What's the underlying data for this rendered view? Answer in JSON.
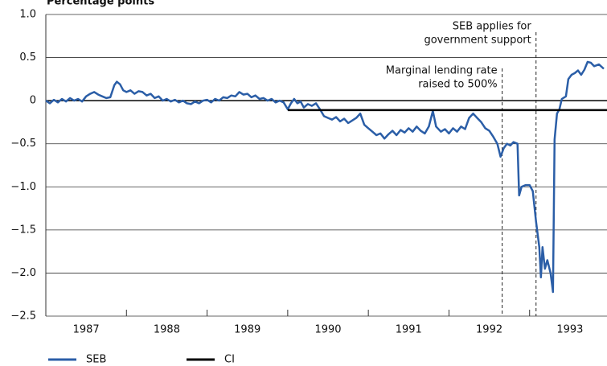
{
  "chart_data": {
    "type": "line",
    "y_label": "Percentage points",
    "xlim": [
      1987,
      1993.96
    ],
    "xticks": [
      {
        "value": 1987.5,
        "label": "1987"
      },
      {
        "value": 1988.5,
        "label": "1988"
      },
      {
        "value": 1989.5,
        "label": "1989"
      },
      {
        "value": 1990.5,
        "label": "1990"
      },
      {
        "value": 1991.5,
        "label": "1991"
      },
      {
        "value": 1992.5,
        "label": "1992"
      },
      {
        "value": 1993.5,
        "label": "1993"
      }
    ],
    "xtick_marks": [
      1988,
      1989,
      1990,
      1991,
      1992,
      1993
    ],
    "ylim": [
      -2.5,
      1.0
    ],
    "yticks": [
      {
        "value": 1.0,
        "label": "1.0"
      },
      {
        "value": 0.5,
        "label": "0.5"
      },
      0,
      {
        "value": -0.5,
        "label": "−0.5"
      },
      {
        "value": -1.0,
        "label": "−1.0"
      },
      {
        "value": -1.5,
        "label": "−1.5"
      },
      {
        "value": -2.0,
        "label": "−2.0"
      },
      {
        "value": -2.5,
        "label": "−2.5"
      }
    ],
    "grid": true,
    "annotations": [
      {
        "x": 1992.66,
        "lines": [
          "Marginal lending rate",
          "raised to 500%"
        ]
      },
      {
        "x": 1993.08,
        "lines": [
          "SEB applies for",
          "government support"
        ]
      }
    ],
    "series": [
      {
        "name": "SEB",
        "color": "#2b5ea7",
        "x": [
          1987.0,
          1987.05,
          1987.1,
          1987.15,
          1987.2,
          1987.25,
          1987.3,
          1987.35,
          1987.4,
          1987.45,
          1987.5,
          1987.55,
          1987.6,
          1987.65,
          1987.7,
          1987.75,
          1987.8,
          1987.85,
          1987.88,
          1987.92,
          1987.96,
          1988.0,
          1988.05,
          1988.1,
          1988.15,
          1988.2,
          1988.25,
          1988.3,
          1988.35,
          1988.4,
          1988.45,
          1988.5,
          1988.55,
          1988.6,
          1988.65,
          1988.7,
          1988.75,
          1988.8,
          1988.85,
          1988.9,
          1988.95,
          1989.0,
          1989.05,
          1989.1,
          1989.15,
          1989.2,
          1989.25,
          1989.3,
          1989.35,
          1989.4,
          1989.45,
          1989.5,
          1989.55,
          1989.6,
          1989.65,
          1989.7,
          1989.75,
          1989.8,
          1989.85,
          1989.9,
          1989.95,
          1990.0,
          1990.04,
          1990.08,
          1990.12,
          1990.16,
          1990.2,
          1990.25,
          1990.3,
          1990.35,
          1990.4,
          1990.45,
          1990.5,
          1990.55,
          1990.6,
          1990.65,
          1990.7,
          1990.75,
          1990.8,
          1990.85,
          1990.9,
          1990.95,
          1991.0,
          1991.05,
          1991.1,
          1991.15,
          1991.2,
          1991.25,
          1991.3,
          1991.35,
          1991.4,
          1991.45,
          1991.5,
          1991.55,
          1991.6,
          1991.65,
          1991.7,
          1991.75,
          1991.8,
          1991.84,
          1991.9,
          1991.95,
          1992.0,
          1992.05,
          1992.1,
          1992.15,
          1992.2,
          1992.25,
          1992.3,
          1992.35,
          1992.4,
          1992.45,
          1992.5,
          1992.55,
          1992.6,
          1992.64,
          1992.68,
          1992.72,
          1992.76,
          1992.8,
          1992.85,
          1992.87,
          1992.9,
          1992.95,
          1993.0,
          1993.04,
          1993.08,
          1993.12,
          1993.14,
          1993.16,
          1993.19,
          1993.22,
          1993.26,
          1993.29,
          1993.31,
          1993.34,
          1993.37,
          1993.4,
          1993.45,
          1993.48,
          1993.52,
          1993.56,
          1993.6,
          1993.64,
          1993.68,
          1993.72,
          1993.76,
          1993.8,
          1993.86,
          1993.92
        ],
        "values": [
          0,
          -0.03,
          0.01,
          -0.02,
          0.02,
          -0.01,
          0.03,
          0.0,
          0.02,
          -0.01,
          0.05,
          0.08,
          0.1,
          0.07,
          0.05,
          0.03,
          0.04,
          0.18,
          0.22,
          0.19,
          0.12,
          0.1,
          0.12,
          0.08,
          0.11,
          0.1,
          0.06,
          0.08,
          0.03,
          0.05,
          0.0,
          0.02,
          -0.01,
          0.01,
          -0.02,
          0.0,
          -0.03,
          -0.04,
          -0.01,
          -0.03,
          0.0,
          0.01,
          -0.02,
          0.02,
          0.0,
          0.04,
          0.03,
          0.06,
          0.05,
          0.1,
          0.07,
          0.08,
          0.04,
          0.06,
          0.02,
          0.03,
          0.0,
          0.02,
          -0.02,
          0.0,
          -0.02,
          -0.1,
          -0.03,
          0.02,
          -0.03,
          -0.01,
          -0.08,
          -0.04,
          -0.06,
          -0.03,
          -0.1,
          -0.18,
          -0.2,
          -0.22,
          -0.19,
          -0.24,
          -0.21,
          -0.26,
          -0.23,
          -0.2,
          -0.15,
          -0.28,
          -0.32,
          -0.36,
          -0.4,
          -0.38,
          -0.44,
          -0.39,
          -0.35,
          -0.4,
          -0.34,
          -0.37,
          -0.32,
          -0.36,
          -0.3,
          -0.35,
          -0.38,
          -0.3,
          -0.12,
          -0.3,
          -0.36,
          -0.33,
          -0.38,
          -0.32,
          -0.36,
          -0.3,
          -0.33,
          -0.2,
          -0.15,
          -0.2,
          -0.25,
          -0.32,
          -0.35,
          -0.42,
          -0.5,
          -0.65,
          -0.55,
          -0.5,
          -0.52,
          -0.48,
          -0.5,
          -1.1,
          -1.0,
          -0.98,
          -0.98,
          -1.05,
          -1.4,
          -1.7,
          -2.05,
          -1.7,
          -1.95,
          -1.85,
          -2.0,
          -2.22,
          -0.45,
          -0.15,
          -0.1,
          0.02,
          0.05,
          0.25,
          0.3,
          0.32,
          0.35,
          0.3,
          0.36,
          0.45,
          0.44,
          0.4,
          0.42,
          0.37
        ]
      },
      {
        "name": "CI",
        "color": "#000000",
        "x": [
          1990.0,
          1993.96
        ],
        "values": [
          -0.11,
          -0.11
        ]
      }
    ]
  }
}
